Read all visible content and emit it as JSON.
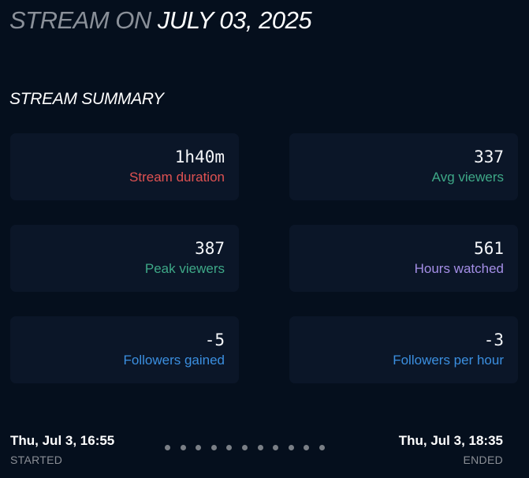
{
  "header": {
    "title_prefix": "STREAM ON",
    "title_date": "JULY 03, 2025"
  },
  "summary": {
    "heading": "STREAM SUMMARY",
    "stats": [
      {
        "value": "1h40m",
        "label": "Stream duration",
        "color": "#e05252"
      },
      {
        "value": "337",
        "label": "Avg viewers",
        "color": "#3ea887"
      },
      {
        "value": "387",
        "label": "Peak viewers",
        "color": "#3ea887"
      },
      {
        "value": "561",
        "label": "Hours watched",
        "color": "#a48ee6"
      },
      {
        "value": "-5",
        "label": "Followers gained",
        "color": "#3b8fe0"
      },
      {
        "value": "-3",
        "label": "Followers per hour",
        "color": "#3b8fe0"
      }
    ]
  },
  "timeline": {
    "start_time": "Thu, Jul 3, 16:55",
    "start_caption": "STARTED",
    "end_time": "Thu, Jul 3, 18:35",
    "end_caption": "ENDED",
    "dot_color": "#7a7f86"
  }
}
